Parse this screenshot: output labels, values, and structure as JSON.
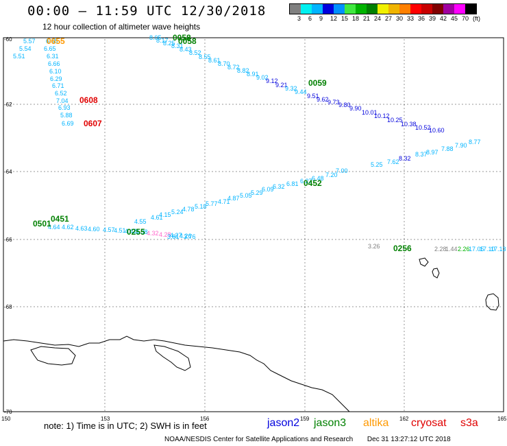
{
  "header": {
    "title": "00:00 – 11:59 UTC 12/30/2018",
    "subtitle": "12 hour collection of altimeter wave heights"
  },
  "color_scale": {
    "colors": [
      "#808080",
      "#00f0f0",
      "#00b4ff",
      "#0000dc",
      "#0090ff",
      "#40e840",
      "#00b400",
      "#008000",
      "#f0f000",
      "#f0b400",
      "#ff8000",
      "#ff0000",
      "#c80000",
      "#800000",
      "#a000a0",
      "#ff00ff",
      "#000000"
    ],
    "labels": [
      "3",
      "6",
      "9",
      "12",
      "15",
      "18",
      "21",
      "24",
      "27",
      "30",
      "33",
      "36",
      "39",
      "42",
      "45",
      "70"
    ],
    "unit": "(ft)"
  },
  "axes": {
    "lat_labels": [
      "-60",
      "-62",
      "-64",
      "-66",
      "-68",
      "-70"
    ],
    "lon_labels": [
      "150",
      "153",
      "156",
      "159",
      "162",
      "165"
    ]
  },
  "map_labels": {
    "times": [
      {
        "text": "0655",
        "color": "#ff9900"
      },
      {
        "text": "0608",
        "color": "#e00000"
      },
      {
        "text": "0607",
        "color": "#e00000"
      },
      {
        "text": "0058",
        "color": "#008000"
      },
      {
        "text": "0058",
        "color": "#008000"
      },
      {
        "text": "0059",
        "color": "#008000"
      },
      {
        "text": "0452",
        "color": "#008000"
      },
      {
        "text": "0451",
        "color": "#008000"
      },
      {
        "text": "0501",
        "color": "#008000"
      },
      {
        "text": "0255",
        "color": "#008000"
      },
      {
        "text": "0256",
        "color": "#008000"
      }
    ],
    "swh_values": [
      "5.57",
      "6.65",
      "5.54",
      "6.65",
      "5.51",
      "6.31",
      "6.66",
      "6.10",
      "6.29",
      "6.71",
      "6.52",
      "7.04",
      "6.93",
      "5.88",
      "6.69",
      "8.05",
      "8.17",
      "8.25",
      "8.31",
      "8.43",
      "8.52",
      "8.55",
      "8.61",
      "8.70",
      "8.72",
      "8.82",
      "8.91",
      "9.02",
      "9.12",
      "9.21",
      "9.32",
      "9.44",
      "9.51",
      "9.62",
      "9.73",
      "9.80",
      "9.90",
      "10.01",
      "10.12",
      "10.25",
      "10.38",
      "10.52",
      "10.60",
      "5.25",
      "7.62",
      "8.32",
      "8.37",
      "8.97",
      "7.88",
      "7.90",
      "8.77",
      "7.00",
      "7.20",
      "6.48",
      "6.27",
      "6.81",
      "6.32",
      "6.09",
      "5.29",
      "5.05",
      "4.87",
      "4.71",
      "5.77",
      "5.18",
      "4.78",
      "5.24",
      "4.15",
      "4.61",
      "4.55",
      "4.64",
      "4.62",
      "4.63",
      "4.60",
      "4.57",
      "4.51",
      "4.42",
      "4.38",
      "4.32",
      "4.28",
      "4.27",
      "4.26",
      "3.81",
      "3.76",
      "3.26",
      "2.28",
      "1.44",
      "2.26",
      "17.05",
      "17.10",
      "17.13",
      "17.20",
      "17.22",
      "17.25",
      "17.30"
    ]
  },
  "footer": {
    "note": "note:  1) Time is in UTC;  2) SWH is in feet",
    "satellites": [
      {
        "name": "jason2",
        "color": "#0000dd"
      },
      {
        "name": "jason3",
        "color": "#008000"
      },
      {
        "name": "altika",
        "color": "#ff9900"
      },
      {
        "name": "cryosat",
        "color": "#e00000"
      },
      {
        "name": "s3a",
        "color": "#e00000"
      }
    ],
    "credit": "NOAA/NESDIS Center for Satellite Applications and Research",
    "timestamp": "Dec 31 13:27:12 UTC 2018"
  }
}
